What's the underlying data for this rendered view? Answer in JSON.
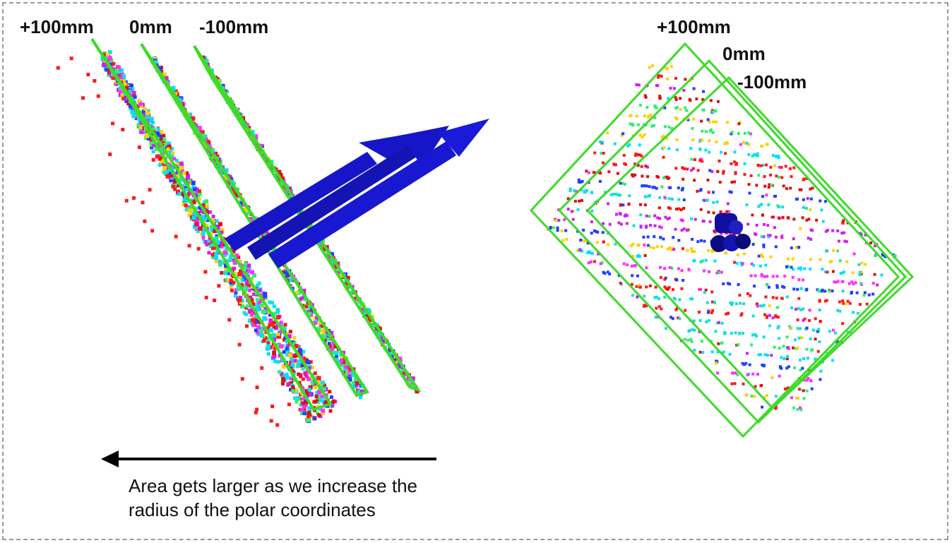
{
  "left_view": {
    "plane_labels": [
      "+100mm",
      "0mm",
      "-100mm"
    ],
    "note_line1": "Area gets larger as we increase the",
    "note_line2": "radius of the polar coordinates"
  },
  "right_view": {
    "plane_labels": [
      "+100mm",
      "0mm",
      "-100mm"
    ]
  },
  "colors": {
    "plane_outline": "#3cdc28",
    "arrow": "#1616c8",
    "arrow_dark": "#0a0a78",
    "point_palette": [
      "#ff1a1a",
      "#e01010",
      "#1adcdc",
      "#00e0ff",
      "#ff30ff",
      "#d020f0",
      "#2040ff",
      "#30f070",
      "#ffd000"
    ],
    "frame_border": "#9a9a9a",
    "text": "#111111"
  }
}
